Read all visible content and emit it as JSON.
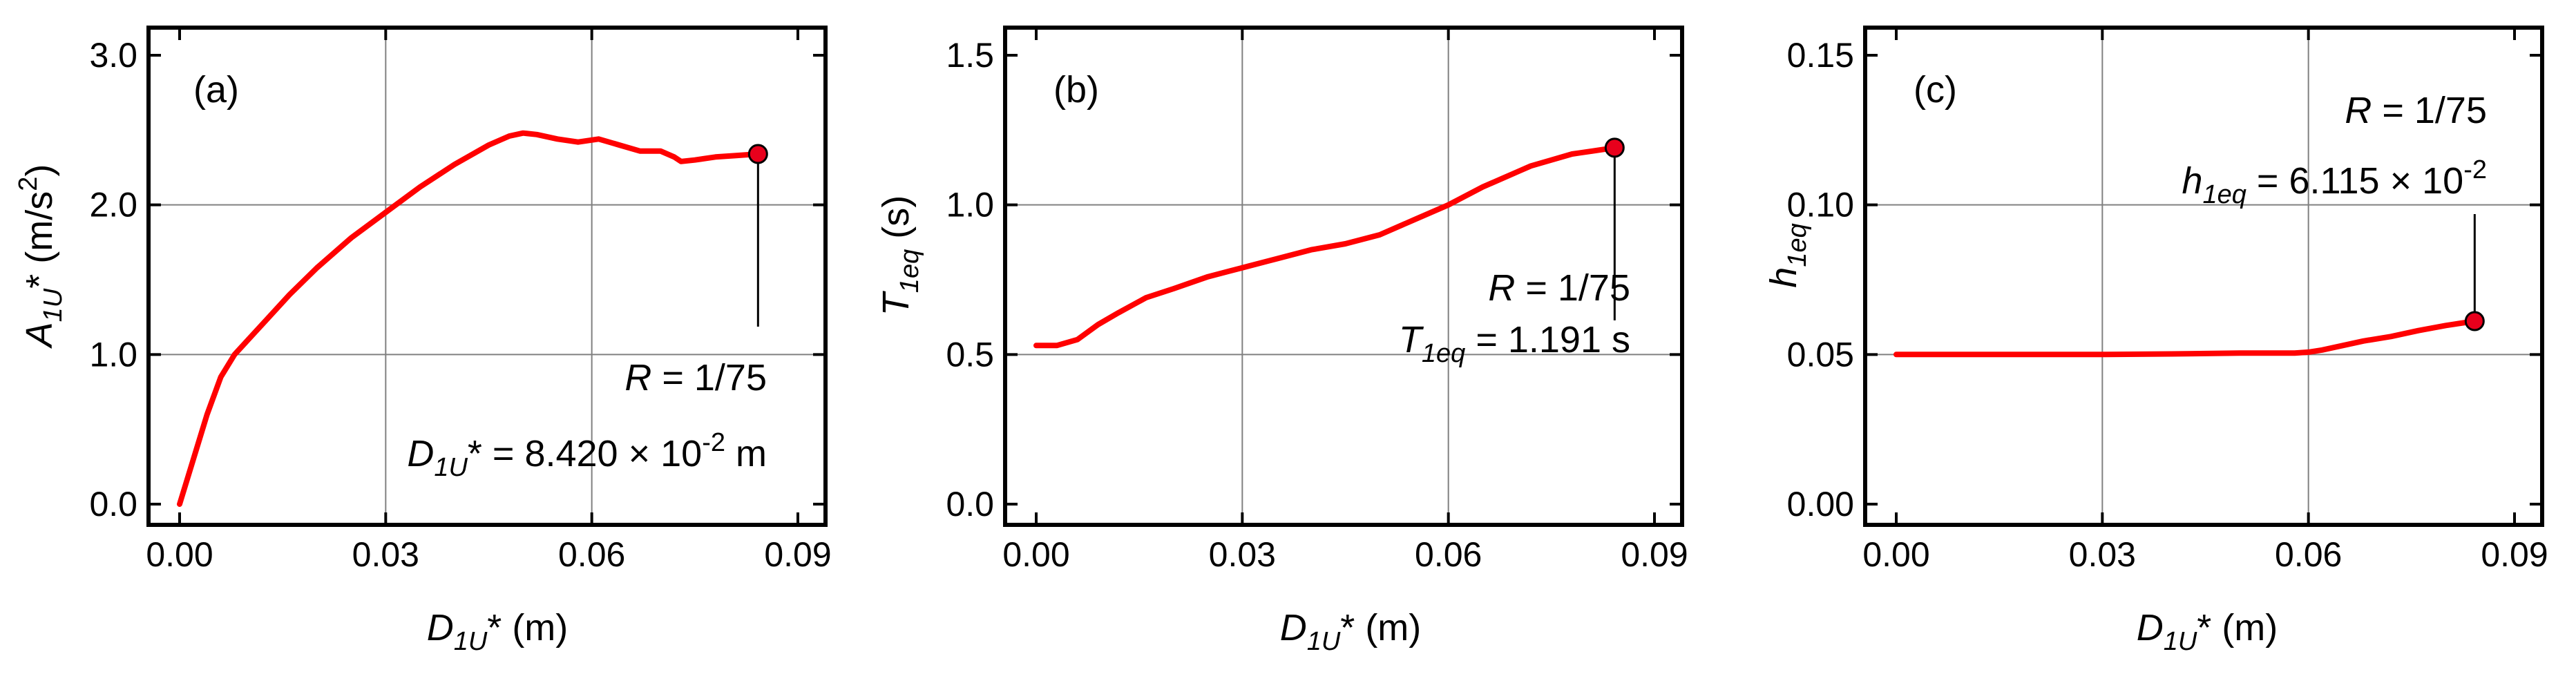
{
  "colors": {
    "series": "#ff0000",
    "marker_fill": "#e8001c",
    "grid": "#808080",
    "axis": "#000000"
  },
  "chart_data": [
    {
      "type": "line",
      "panel_label": "(a)",
      "xlabel": {
        "main": "D",
        "sub": "1U",
        "tail": "* (m)"
      },
      "ylabel": {
        "main": "A",
        "sub": "1U",
        "tail": "* (m/s",
        "sup": "2",
        "end": ")"
      },
      "xlim": [
        0,
        0.09
      ],
      "ylim": [
        0,
        3.0
      ],
      "xticks": [
        0,
        0.03,
        0.06,
        0.09
      ],
      "xtick_labels": [
        "0.00",
        "0.03",
        "0.06",
        "0.09"
      ],
      "yticks": [
        0,
        1.0,
        2.0,
        3.0
      ],
      "ytick_labels": [
        "0.0",
        "1.0",
        "2.0",
        "3.0"
      ],
      "grid": true,
      "series": [
        {
          "x": [
            0,
            0.002,
            0.004,
            0.006,
            0.008,
            0.01,
            0.013,
            0.016,
            0.02,
            0.025,
            0.03,
            0.035,
            0.04,
            0.045,
            0.048,
            0.05,
            0.052,
            0.055,
            0.058,
            0.061,
            0.064,
            0.067,
            0.07,
            0.072,
            0.073,
            0.075,
            0.078,
            0.081,
            0.0842
          ],
          "y": [
            0,
            0.3,
            0.6,
            0.85,
            1.0,
            1.1,
            1.25,
            1.4,
            1.58,
            1.78,
            1.95,
            2.12,
            2.27,
            2.4,
            2.46,
            2.48,
            2.47,
            2.44,
            2.42,
            2.44,
            2.4,
            2.36,
            2.36,
            2.32,
            2.29,
            2.3,
            2.32,
            2.33,
            2.34
          ]
        }
      ],
      "end_marker": {
        "x": 0.0842,
        "y": 2.34
      },
      "annotations": {
        "r_prefix": "R",
        "r_value": " = 1/75",
        "value_main": "D",
        "value_sub": "1U",
        "value_tail": "* = 8.420 × 10",
        "value_sup": "-2",
        "value_unit": " m"
      }
    },
    {
      "type": "line",
      "panel_label": "(b)",
      "xlabel": {
        "main": "D",
        "sub": "1U",
        "tail": "* (m)"
      },
      "ylabel": {
        "main": "T",
        "sub": "1eq",
        "tail": " (s)"
      },
      "xlim": [
        0,
        0.09
      ],
      "ylim": [
        0,
        1.5
      ],
      "xticks": [
        0,
        0.03,
        0.06,
        0.09
      ],
      "xtick_labels": [
        "0.00",
        "0.03",
        "0.06",
        "0.09"
      ],
      "yticks": [
        0,
        0.5,
        1.0,
        1.5
      ],
      "ytick_labels": [
        "0.0",
        "0.5",
        "1.0",
        "1.5"
      ],
      "grid": true,
      "series": [
        {
          "x": [
            0,
            0.003,
            0.006,
            0.009,
            0.012,
            0.016,
            0.02,
            0.025,
            0.03,
            0.035,
            0.04,
            0.045,
            0.05,
            0.055,
            0.06,
            0.065,
            0.07,
            0.072,
            0.075,
            0.078,
            0.081,
            0.0842
          ],
          "y": [
            0.53,
            0.53,
            0.55,
            0.6,
            0.64,
            0.69,
            0.72,
            0.76,
            0.79,
            0.82,
            0.85,
            0.87,
            0.9,
            0.95,
            1.0,
            1.06,
            1.11,
            1.13,
            1.15,
            1.17,
            1.18,
            1.191
          ]
        }
      ],
      "end_marker": {
        "x": 0.0842,
        "y": 1.191
      },
      "annotations": {
        "r_prefix": "R",
        "r_value": " = 1/75",
        "value_main": "T",
        "value_sub": "1eq",
        "value_tail": " = 1.191 s"
      }
    },
    {
      "type": "line",
      "panel_label": "(c)",
      "xlabel": {
        "main": "D",
        "sub": "1U",
        "tail": "* (m)"
      },
      "ylabel": {
        "main": "h",
        "sub": "1eq",
        "tail": ""
      },
      "xlim": [
        0,
        0.09
      ],
      "ylim": [
        0,
        0.15
      ],
      "xticks": [
        0,
        0.03,
        0.06,
        0.09
      ],
      "xtick_labels": [
        "0.00",
        "0.03",
        "0.06",
        "0.09"
      ],
      "yticks": [
        0,
        0.05,
        0.1,
        0.15
      ],
      "ytick_labels": [
        "0.00",
        "0.05",
        "0.10",
        "0.15"
      ],
      "grid": true,
      "series": [
        {
          "x": [
            0,
            0.01,
            0.02,
            0.03,
            0.04,
            0.05,
            0.058,
            0.06,
            0.062,
            0.065,
            0.068,
            0.072,
            0.076,
            0.08,
            0.0842
          ],
          "y": [
            0.05,
            0.05,
            0.05,
            0.05,
            0.0502,
            0.0505,
            0.0505,
            0.0508,
            0.0515,
            0.053,
            0.0545,
            0.056,
            0.058,
            0.0597,
            0.06115
          ]
        }
      ],
      "end_marker": {
        "x": 0.0842,
        "y": 0.06115
      },
      "annotations": {
        "r_prefix": "R",
        "r_value": " = 1/75",
        "value_main": "h",
        "value_sub": "1eq",
        "value_tail": " = 6.115 × 10",
        "value_sup": "-2"
      }
    }
  ]
}
